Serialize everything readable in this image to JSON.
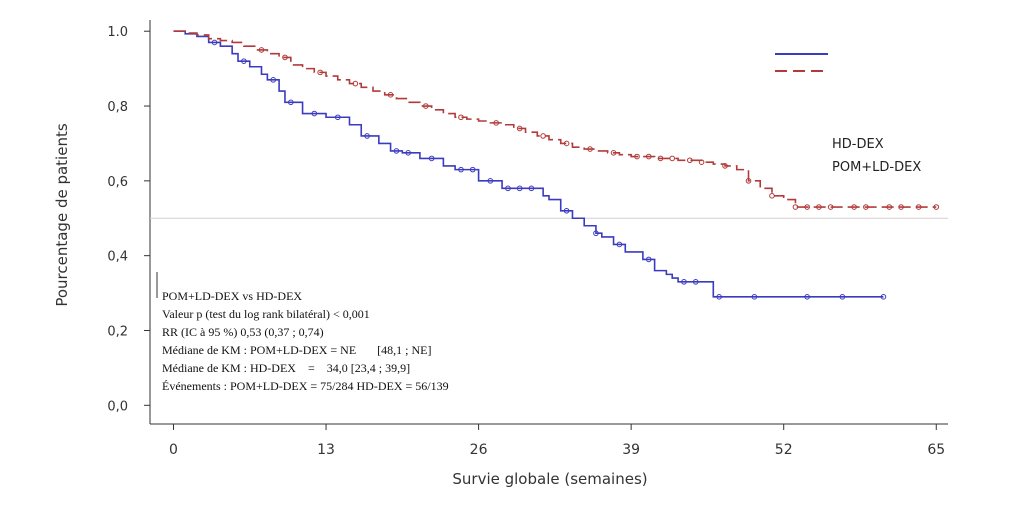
{
  "chart_data": {
    "type": "line",
    "subtype": "kaplan-meier",
    "xlabel": "Survie globale (semaines)",
    "ylabel": "Pourcentage de patients",
    "xlim": [
      -2,
      66
    ],
    "ylim": [
      -0.05,
      1.03
    ],
    "x_ticks": [
      0,
      13,
      26,
      39,
      52,
      65
    ],
    "x_tick_labels": [
      "0",
      "13",
      "26",
      "39",
      "52",
      "65"
    ],
    "y_ticks": [
      0.0,
      0.2,
      0.4,
      0.6,
      0.8,
      1.0
    ],
    "y_tick_labels": [
      "0,0",
      "0,2",
      "0,4",
      "0,6",
      "0,8",
      "1.0"
    ],
    "reference_line_y": 0.5,
    "legend": {
      "placement": "top-right",
      "entries": [
        "HD-DEX",
        "POM+LD-DEX"
      ]
    },
    "series": [
      {
        "name": "HD-DEX",
        "color": "#3b3bbf",
        "style": "solid",
        "x": [
          0,
          1,
          2,
          3,
          4,
          5,
          5.5,
          6.5,
          7.5,
          8,
          9,
          9.5,
          11,
          13,
          15,
          16,
          17.5,
          18.5,
          19.5,
          21,
          23,
          24,
          26,
          28,
          31.5,
          32,
          33,
          34,
          35,
          36,
          36.5,
          37.5,
          38.5,
          40,
          41,
          42,
          42.5,
          43,
          46,
          50,
          55,
          60.5
        ],
        "y": [
          1.0,
          0.993,
          0.986,
          0.97,
          0.96,
          0.94,
          0.92,
          0.905,
          0.885,
          0.87,
          0.84,
          0.81,
          0.78,
          0.77,
          0.75,
          0.72,
          0.7,
          0.68,
          0.675,
          0.66,
          0.64,
          0.63,
          0.6,
          0.58,
          0.56,
          0.55,
          0.52,
          0.5,
          0.48,
          0.46,
          0.45,
          0.43,
          0.41,
          0.39,
          0.36,
          0.35,
          0.34,
          0.33,
          0.29,
          0.29,
          0.29,
          0.29
        ]
      },
      {
        "name": "POM+LD-DEX",
        "color": "#b23a3a",
        "style": "dashed",
        "x": [
          0,
          1,
          2,
          3,
          4,
          5,
          6,
          7,
          8,
          9,
          10,
          11,
          12,
          13,
          14,
          15,
          16,
          17,
          18,
          19,
          20,
          21,
          22,
          23,
          24,
          25,
          26,
          27,
          28,
          29,
          30,
          31,
          32,
          33,
          34,
          35,
          36,
          37,
          38,
          39,
          40,
          41,
          42,
          43,
          44,
          45,
          46,
          47,
          48,
          49,
          50,
          51,
          52,
          53,
          55,
          57,
          60,
          63,
          65
        ],
        "y": [
          1.0,
          0.995,
          0.99,
          0.98,
          0.975,
          0.97,
          0.96,
          0.95,
          0.94,
          0.93,
          0.91,
          0.9,
          0.89,
          0.88,
          0.87,
          0.86,
          0.85,
          0.84,
          0.83,
          0.82,
          0.81,
          0.8,
          0.79,
          0.78,
          0.77,
          0.765,
          0.76,
          0.755,
          0.75,
          0.74,
          0.73,
          0.72,
          0.71,
          0.7,
          0.69,
          0.685,
          0.68,
          0.675,
          0.67,
          0.665,
          0.665,
          0.66,
          0.66,
          0.655,
          0.655,
          0.65,
          0.645,
          0.64,
          0.63,
          0.6,
          0.58,
          0.56,
          0.55,
          0.53,
          0.53,
          0.53,
          0.53,
          0.53,
          0.53
        ]
      }
    ],
    "censor_x": {
      "HD-DEX": [
        3.5,
        6,
        8.5,
        10,
        12,
        14,
        16.5,
        19,
        20,
        22,
        24.5,
        25.5,
        27,
        28.5,
        29.5,
        30.5,
        33.5,
        36,
        38,
        40.5,
        43.5,
        44.5,
        46.5,
        49.5,
        54,
        57,
        60.5
      ],
      "POM+LD-DEX": [
        7.5,
        9.5,
        12.5,
        15.5,
        18.5,
        21.5,
        24.5,
        27.5,
        29.5,
        31.5,
        33.5,
        35.5,
        37.5,
        39.5,
        40.5,
        41.5,
        42.5,
        44,
        45,
        47,
        49,
        51,
        53,
        54,
        55,
        56,
        58,
        59,
        61,
        62,
        63.5,
        65
      ]
    },
    "annotation_lines": [
      "POM+LD-DEX vs HD-DEX",
      "Valeur p (test du log rank bilatéral) < 0,001",
      "RR (IC à 95 %) 0,53 (0,37 ; 0,74)",
      "Médiane de KM : POM+LD-DEX = NE       [48,1 ; NE]",
      "Médiane de KM : HD-DEX    =    34,0 [23,4 ; 39,9]",
      "Événements : POM+LD-DEX = 75/284 HD-DEX = 56/139"
    ]
  }
}
